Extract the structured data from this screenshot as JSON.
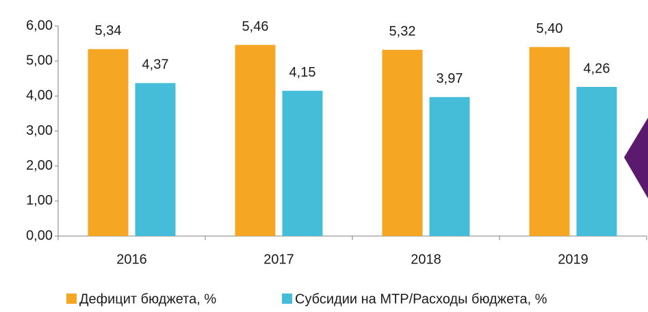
{
  "chart_data": {
    "type": "bar",
    "categories": [
      "2016",
      "2017",
      "2018",
      "2019"
    ],
    "series": [
      {
        "name": "Дефицит бюджета, %",
        "color": "#f5a623",
        "values": [
          5.34,
          5.46,
          5.32,
          5.4
        ],
        "value_labels": [
          "5,34",
          "5,46",
          "5,32",
          "5,40"
        ]
      },
      {
        "name": "Субсидии на МТР/Расходы бюджета, %",
        "color": "#45bcd8",
        "values": [
          4.37,
          4.15,
          3.97,
          4.26
        ],
        "value_labels": [
          "4,37",
          "4,15",
          "3,97",
          "4,26"
        ]
      }
    ],
    "ylim": [
      0,
      6
    ],
    "yticks": [
      {
        "value": 0,
        "label": "0,00"
      },
      {
        "value": 1,
        "label": "1,00"
      },
      {
        "value": 2,
        "label": "2,00"
      },
      {
        "value": 3,
        "label": "3,00"
      },
      {
        "value": 4,
        "label": "4,00"
      },
      {
        "value": 5,
        "label": "5,00"
      },
      {
        "value": 6,
        "label": "6,00"
      }
    ],
    "legend": "bottom"
  }
}
